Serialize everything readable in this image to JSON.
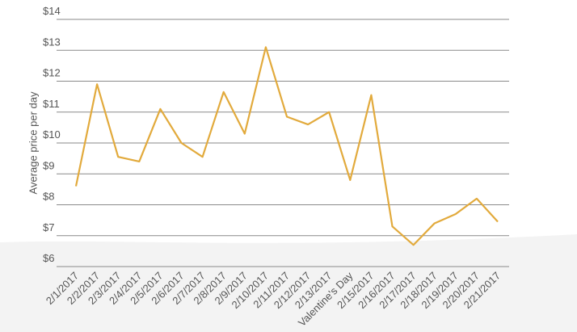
{
  "chart_data": {
    "type": "line",
    "y_label": "Average price per day",
    "categories": [
      "2/1/2017",
      "2/2/2017",
      "2/3/2017",
      "2/4/2017",
      "2/5/2017",
      "2/6/2017",
      "2/7/2017",
      "2/8/2017",
      "2/9/2017",
      "2/10/2017",
      "2/11/2017",
      "2/12/2017",
      "2/13/2017",
      "Valentine's Day",
      "2/15/2017",
      "2/16/2017",
      "2/17/2017",
      "2/18/2017",
      "2/19/2017",
      "2/20/2017",
      "2/21/2017"
    ],
    "series": [
      {
        "color": "#e2aa3c",
        "values": [
          8.6,
          11.9,
          9.55,
          9.4,
          11.1,
          10.0,
          9.55,
          11.65,
          10.3,
          13.1,
          10.85,
          10.6,
          11.0,
          8.8,
          11.55,
          7.3,
          6.7,
          7.4,
          7.7,
          8.2,
          7.45
        ]
      }
    ],
    "ylim": [
      6,
      14
    ],
    "yticks": [
      {
        "value": 6,
        "label": "$6"
      },
      {
        "value": 7,
        "label": "$7"
      },
      {
        "value": 8,
        "label": "$8"
      },
      {
        "value": 9,
        "label": "$9"
      },
      {
        "value": 10,
        "label": "$10"
      },
      {
        "value": 11,
        "label": "$11"
      },
      {
        "value": 12,
        "label": "$12"
      },
      {
        "value": 13,
        "label": "$13"
      },
      {
        "value": 14,
        "label": "$14"
      }
    ],
    "grid": true
  }
}
